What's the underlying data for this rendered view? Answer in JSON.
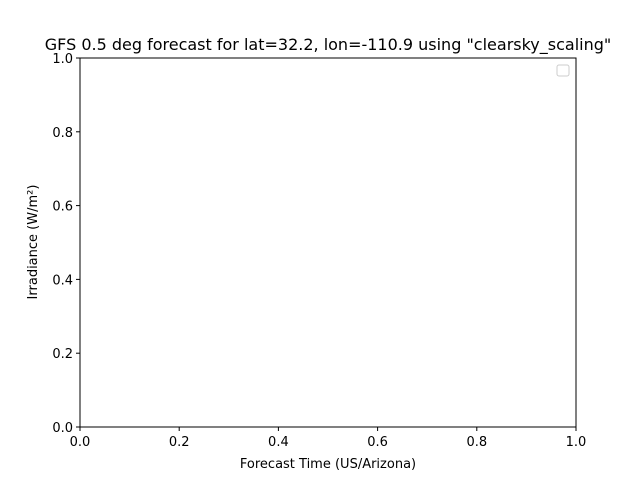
{
  "chart_data": {
    "type": "line",
    "title": "GFS 0.5 deg forecast for lat=32.2, lon=-110.9 using \"clearsky_scaling\"",
    "xlabel": "Forecast Time (US/Arizona)",
    "ylabel": "Irradiance (W/m²)",
    "xlim": [
      0.0,
      1.0
    ],
    "ylim": [
      0.0,
      1.0
    ],
    "xticks": [
      "0.0",
      "0.2",
      "0.4",
      "0.6",
      "0.8",
      "1.0"
    ],
    "yticks": [
      "0.0",
      "0.2",
      "0.4",
      "0.6",
      "0.8",
      "1.0"
    ],
    "series": [],
    "legend": {
      "placement": "top-right",
      "entries": []
    },
    "grid": false
  }
}
